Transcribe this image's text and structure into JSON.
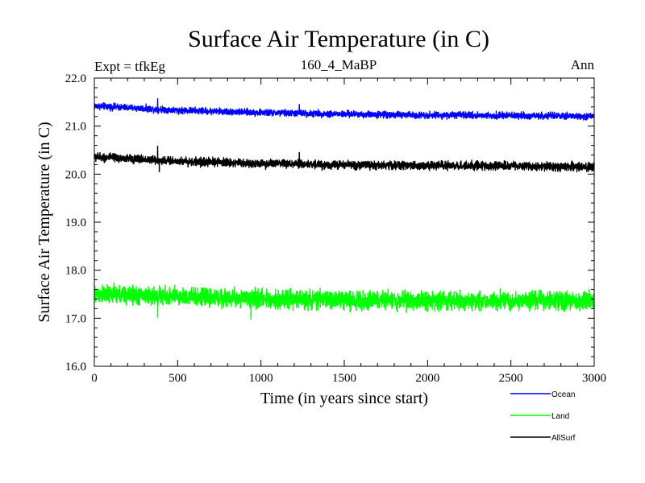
{
  "chart_data": {
    "type": "line",
    "title": "Surface Air Temperature (in C)",
    "subtitle": "160_4_MaBP",
    "annotation_left": "Expt = tfkEg",
    "annotation_right": "Ann",
    "xlabel": "Time (in years since start)",
    "ylabel": "Surface Air Temperature (in C)",
    "xlim": [
      0,
      3000
    ],
    "ylim": [
      16.0,
      22.0
    ],
    "x_major_ticks": [
      0,
      500,
      1000,
      1500,
      2000,
      2500,
      3000
    ],
    "x_tick_labels": [
      "0",
      "500",
      "1000",
      "1500",
      "2000",
      "2500",
      "3000"
    ],
    "y_major_ticks": [
      16,
      17,
      18,
      19,
      20,
      21,
      22
    ],
    "y_tick_labels": [
      "16.0",
      "17.0",
      "18.0",
      "19.0",
      "20.0",
      "21.0",
      "22.0"
    ],
    "grid": false,
    "legend_position": "bottom-right, below plot",
    "x_step": 1,
    "series": [
      {
        "name": "Ocean",
        "color": "#0000ff",
        "trend_x": [
          0,
          500,
          1000,
          1500,
          2000,
          2500,
          3000
        ],
        "trend_y": [
          21.42,
          21.33,
          21.28,
          21.25,
          21.23,
          21.22,
          21.2
        ],
        "noise_amplitude": 0.05,
        "spikes": [
          {
            "x": 380,
            "y": 21.57
          },
          {
            "x": 1230,
            "y": 21.45
          }
        ]
      },
      {
        "name": "Land",
        "color": "#00ff00",
        "trend_x": [
          0,
          500,
          1000,
          1500,
          2000,
          2500,
          3000
        ],
        "trend_y": [
          17.5,
          17.45,
          17.4,
          17.38,
          17.37,
          17.36,
          17.36
        ],
        "noise_amplitude": 0.14,
        "spikes": [
          {
            "x": 380,
            "y": 17.02
          },
          {
            "x": 940,
            "y": 16.98
          }
        ]
      },
      {
        "name": "AllSurf",
        "color": "#000000",
        "trend_x": [
          0,
          500,
          1000,
          1500,
          2000,
          2500,
          3000
        ],
        "trend_y": [
          20.36,
          20.27,
          20.22,
          20.19,
          20.18,
          20.17,
          20.15
        ],
        "noise_amplitude": 0.065,
        "spikes": [
          {
            "x": 380,
            "y": 20.58
          },
          {
            "x": 390,
            "y": 20.05
          },
          {
            "x": 1230,
            "y": 20.45
          }
        ]
      }
    ]
  }
}
